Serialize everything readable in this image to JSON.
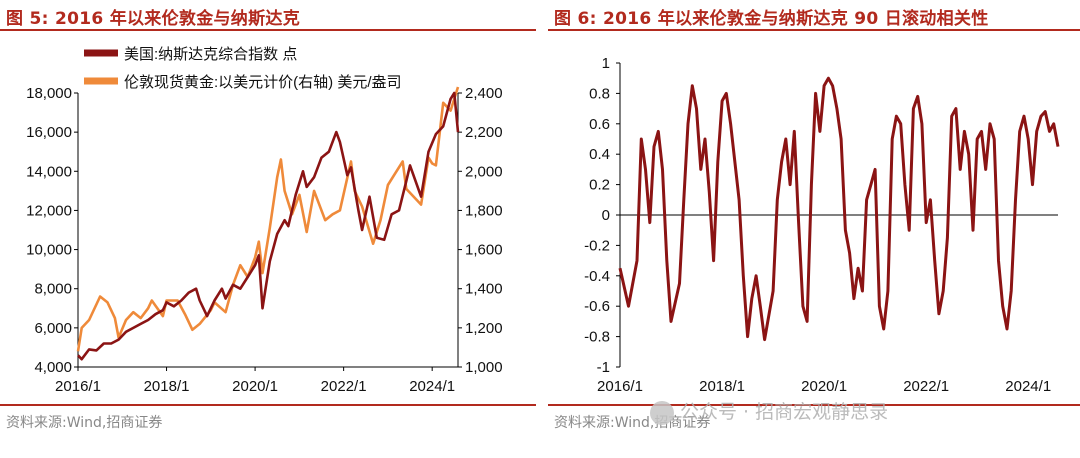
{
  "left": {
    "title": "图 5:  2016 年以来伦敦金与纳斯达克",
    "source": "资料来源:Wind,招商证券"
  },
  "right": {
    "title": "图 6:  2016 年以来伦敦金与纳斯达克 90 日滚动相关性",
    "source": "资料来源:Wind,招商证券"
  },
  "watermark": "公众号 · 招商宏观静思录",
  "colors": {
    "dark_red": "#8b1414",
    "orange": "#ef8a3a",
    "title_red": "#b22a1e"
  },
  "chart_data": [
    {
      "type": "line",
      "x_tick_labels": [
        "2016/1",
        "2018/1",
        "2020/1",
        "2022/1",
        "2024/1"
      ],
      "x_range": [
        "2016-01",
        "2024-08"
      ],
      "y_left": {
        "range": [
          4000,
          18000
        ],
        "ticks": [
          "4,000",
          "6,000",
          "8,000",
          "10,000",
          "12,000",
          "14,000",
          "16,000",
          "18,000"
        ]
      },
      "y_right": {
        "range": [
          1000,
          2400
        ],
        "ticks": [
          "1,000",
          "1,200",
          "1,400",
          "1,600",
          "1,800",
          "2,000",
          "2,200",
          "2,400"
        ]
      },
      "legend_position": "top-left",
      "series": [
        {
          "name": "美国:纳斯达克综合指数 点",
          "axis": "left",
          "color": "#8b1414",
          "points": [
            [
              "2016-01",
              4600
            ],
            [
              "2016-02",
              4400
            ],
            [
              "2016-04",
              4900
            ],
            [
              "2016-06",
              4850
            ],
            [
              "2016-08",
              5200
            ],
            [
              "2016-10",
              5200
            ],
            [
              "2016-12",
              5400
            ],
            [
              "2017-02",
              5800
            ],
            [
              "2017-04",
              6000
            ],
            [
              "2017-06",
              6200
            ],
            [
              "2017-08",
              6400
            ],
            [
              "2017-10",
              6700
            ],
            [
              "2017-12",
              6900
            ],
            [
              "2018-01",
              7300
            ],
            [
              "2018-03",
              7100
            ],
            [
              "2018-05",
              7400
            ],
            [
              "2018-07",
              7800
            ],
            [
              "2018-09",
              8000
            ],
            [
              "2018-10",
              7400
            ],
            [
              "2018-12",
              6600
            ],
            [
              "2019-02",
              7400
            ],
            [
              "2019-04",
              8000
            ],
            [
              "2019-05",
              7500
            ],
            [
              "2019-07",
              8200
            ],
            [
              "2019-09",
              8000
            ],
            [
              "2019-11",
              8600
            ],
            [
              "2020-01",
              9200
            ],
            [
              "2020-02",
              9700
            ],
            [
              "2020-03",
              7000
            ],
            [
              "2020-05",
              9400
            ],
            [
              "2020-07",
              10800
            ],
            [
              "2020-09",
              11500
            ],
            [
              "2020-10",
              11200
            ],
            [
              "2020-12",
              12800
            ],
            [
              "2021-02",
              14000
            ],
            [
              "2021-03",
              13200
            ],
            [
              "2021-05",
              13700
            ],
            [
              "2021-07",
              14700
            ],
            [
              "2021-09",
              15000
            ],
            [
              "2021-11",
              16000
            ],
            [
              "2021-12",
              15500
            ],
            [
              "2022-02",
              13800
            ],
            [
              "2022-03",
              14200
            ],
            [
              "2022-05",
              12000
            ],
            [
              "2022-06",
              11000
            ],
            [
              "2022-08",
              12700
            ],
            [
              "2022-10",
              10600
            ],
            [
              "2022-12",
              10500
            ],
            [
              "2023-02",
              11800
            ],
            [
              "2023-04",
              12000
            ],
            [
              "2023-06",
              13500
            ],
            [
              "2023-07",
              14300
            ],
            [
              "2023-10",
              12700
            ],
            [
              "2023-12",
              15000
            ],
            [
              "2024-02",
              15900
            ],
            [
              "2024-04",
              16300
            ],
            [
              "2024-06",
              17700
            ],
            [
              "2024-07",
              18000
            ],
            [
              "2024-08",
              16000
            ]
          ]
        },
        {
          "name": "伦敦现货黄金:以美元计价(右轴) 美元/盎司",
          "axis": "right",
          "color": "#ef8a3a",
          "points": [
            [
              "2016-01",
              1080
            ],
            [
              "2016-02",
              1200
            ],
            [
              "2016-04",
              1240
            ],
            [
              "2016-07",
              1360
            ],
            [
              "2016-09",
              1330
            ],
            [
              "2016-11",
              1250
            ],
            [
              "2016-12",
              1150
            ],
            [
              "2017-02",
              1240
            ],
            [
              "2017-04",
              1280
            ],
            [
              "2017-06",
              1250
            ],
            [
              "2017-08",
              1300
            ],
            [
              "2017-09",
              1340
            ],
            [
              "2017-12",
              1260
            ],
            [
              "2018-01",
              1340
            ],
            [
              "2018-04",
              1340
            ],
            [
              "2018-06",
              1270
            ],
            [
              "2018-08",
              1190
            ],
            [
              "2018-10",
              1220
            ],
            [
              "2019-01",
              1290
            ],
            [
              "2019-02",
              1330
            ],
            [
              "2019-05",
              1280
            ],
            [
              "2019-07",
              1420
            ],
            [
              "2019-09",
              1520
            ],
            [
              "2019-11",
              1460
            ],
            [
              "2020-01",
              1560
            ],
            [
              "2020-02",
              1640
            ],
            [
              "2020-03",
              1480
            ],
            [
              "2020-05",
              1710
            ],
            [
              "2020-07",
              1970
            ],
            [
              "2020-08",
              2060
            ],
            [
              "2020-09",
              1900
            ],
            [
              "2020-11",
              1780
            ],
            [
              "2021-01",
              1880
            ],
            [
              "2021-03",
              1690
            ],
            [
              "2021-05",
              1900
            ],
            [
              "2021-08",
              1750
            ],
            [
              "2021-10",
              1780
            ],
            [
              "2021-12",
              1800
            ],
            [
              "2022-03",
              2050
            ],
            [
              "2022-04",
              1900
            ],
            [
              "2022-06",
              1820
            ],
            [
              "2022-09",
              1630
            ],
            [
              "2022-11",
              1750
            ],
            [
              "2023-01",
              1930
            ],
            [
              "2023-03",
              1990
            ],
            [
              "2023-05",
              2050
            ],
            [
              "2023-06",
              1910
            ],
            [
              "2023-10",
              1830
            ],
            [
              "2023-12",
              2070
            ],
            [
              "2024-01",
              2040
            ],
            [
              "2024-02",
              2030
            ],
            [
              "2024-04",
              2350
            ],
            [
              "2024-06",
              2310
            ],
            [
              "2024-08",
              2470
            ]
          ]
        }
      ]
    },
    {
      "type": "line",
      "x_tick_labels": [
        "2016/1",
        "2018/1",
        "2020/1",
        "2022/1",
        "2024/1"
      ],
      "x_range": [
        "2016-01",
        "2024-08"
      ],
      "y": {
        "range": [
          -1,
          1
        ],
        "ticks": [
          "-1",
          "-0.8",
          "-0.6",
          "-0.4",
          "-0.2",
          "0",
          "0.2",
          "0.4",
          "0.6",
          "0.8",
          "1"
        ]
      },
      "reference_line": 0,
      "series": [
        {
          "name": "",
          "color": "#8b1414",
          "points": [
            [
              "2016-01",
              -0.35
            ],
            [
              "2016-03",
              -0.6
            ],
            [
              "2016-05",
              -0.3
            ],
            [
              "2016-06",
              0.5
            ],
            [
              "2016-07",
              0.3
            ],
            [
              "2016-08",
              -0.05
            ],
            [
              "2016-09",
              0.45
            ],
            [
              "2016-10",
              0.55
            ],
            [
              "2016-11",
              0.3
            ],
            [
              "2016-12",
              -0.3
            ],
            [
              "2017-01",
              -0.7
            ],
            [
              "2017-03",
              -0.45
            ],
            [
              "2017-04",
              0.1
            ],
            [
              "2017-05",
              0.6
            ],
            [
              "2017-06",
              0.85
            ],
            [
              "2017-07",
              0.7
            ],
            [
              "2017-08",
              0.3
            ],
            [
              "2017-09",
              0.5
            ],
            [
              "2017-10",
              0.15
            ],
            [
              "2017-11",
              -0.3
            ],
            [
              "2017-12",
              0.35
            ],
            [
              "2018-01",
              0.75
            ],
            [
              "2018-02",
              0.8
            ],
            [
              "2018-03",
              0.6
            ],
            [
              "2018-05",
              0.1
            ],
            [
              "2018-06",
              -0.4
            ],
            [
              "2018-07",
              -0.8
            ],
            [
              "2018-08",
              -0.55
            ],
            [
              "2018-09",
              -0.4
            ],
            [
              "2018-10",
              -0.6
            ],
            [
              "2018-11",
              -0.82
            ],
            [
              "2019-01",
              -0.5
            ],
            [
              "2019-02",
              0.1
            ],
            [
              "2019-03",
              0.35
            ],
            [
              "2019-04",
              0.5
            ],
            [
              "2019-05",
              0.2
            ],
            [
              "2019-06",
              0.55
            ],
            [
              "2019-07",
              -0.05
            ],
            [
              "2019-08",
              -0.6
            ],
            [
              "2019-09",
              -0.7
            ],
            [
              "2019-10",
              0.2
            ],
            [
              "2019-11",
              0.8
            ],
            [
              "2019-12",
              0.55
            ],
            [
              "2020-01",
              0.85
            ],
            [
              "2020-02",
              0.9
            ],
            [
              "2020-03",
              0.85
            ],
            [
              "2020-04",
              0.7
            ],
            [
              "2020-05",
              0.5
            ],
            [
              "2020-06",
              -0.1
            ],
            [
              "2020-07",
              -0.25
            ],
            [
              "2020-08",
              -0.55
            ],
            [
              "2020-09",
              -0.35
            ],
            [
              "2020-10",
              -0.5
            ],
            [
              "2020-11",
              0.1
            ],
            [
              "2020-12",
              0.2
            ],
            [
              "2021-01",
              0.3
            ],
            [
              "2021-02",
              -0.6
            ],
            [
              "2021-03",
              -0.75
            ],
            [
              "2021-04",
              -0.5
            ],
            [
              "2021-05",
              0.5
            ],
            [
              "2021-06",
              0.65
            ],
            [
              "2021-07",
              0.6
            ],
            [
              "2021-08",
              0.2
            ],
            [
              "2021-09",
              -0.1
            ],
            [
              "2021-10",
              0.7
            ],
            [
              "2021-11",
              0.78
            ],
            [
              "2021-12",
              0.6
            ],
            [
              "2022-01",
              -0.05
            ],
            [
              "2022-02",
              0.1
            ],
            [
              "2022-03",
              -0.3
            ],
            [
              "2022-04",
              -0.65
            ],
            [
              "2022-05",
              -0.5
            ],
            [
              "2022-06",
              -0.15
            ],
            [
              "2022-07",
              0.65
            ],
            [
              "2022-08",
              0.7
            ],
            [
              "2022-09",
              0.3
            ],
            [
              "2022-10",
              0.55
            ],
            [
              "2022-11",
              0.4
            ],
            [
              "2022-12",
              -0.1
            ],
            [
              "2023-01",
              0.5
            ],
            [
              "2023-02",
              0.55
            ],
            [
              "2023-03",
              0.3
            ],
            [
              "2023-04",
              0.6
            ],
            [
              "2023-05",
              0.5
            ],
            [
              "2023-06",
              -0.3
            ],
            [
              "2023-07",
              -0.6
            ],
            [
              "2023-08",
              -0.75
            ],
            [
              "2023-09",
              -0.5
            ],
            [
              "2023-10",
              0.1
            ],
            [
              "2023-11",
              0.55
            ],
            [
              "2023-12",
              0.65
            ],
            [
              "2024-01",
              0.5
            ],
            [
              "2024-02",
              0.2
            ],
            [
              "2024-03",
              0.55
            ],
            [
              "2024-04",
              0.65
            ],
            [
              "2024-05",
              0.68
            ],
            [
              "2024-06",
              0.55
            ],
            [
              "2024-07",
              0.6
            ],
            [
              "2024-08",
              0.45
            ]
          ]
        }
      ]
    }
  ]
}
